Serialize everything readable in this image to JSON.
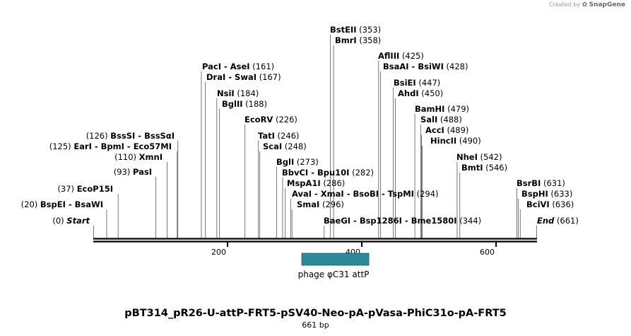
{
  "credit": {
    "prefix": "Created by",
    "brand": "SnapGene"
  },
  "map": {
    "title": "pBT314_pR26-U-attP-FRT5-pSV40-Neo-pA-pVasa-PhiC31o-pA-FRT5",
    "size_label": "661 bp",
    "length": 661,
    "ticks": [
      {
        "value": 200,
        "label": "200"
      },
      {
        "value": 400,
        "label": "400"
      },
      {
        "value": 600,
        "label": "600"
      }
    ],
    "feature": {
      "name": "phage φC31 attP",
      "start": 310,
      "end": 410,
      "color": "#2e8a9b"
    },
    "labels": [
      {
        "id": "bsteii",
        "name": "BstEII",
        "pos": "(353)",
        "cut": 353,
        "side": "right"
      },
      {
        "id": "bmri",
        "name": "BmrI",
        "pos": "(358)",
        "cut": 358,
        "side": "right"
      },
      {
        "id": "afliii",
        "name": "AflIII",
        "pos": "(425)",
        "cut": 425,
        "side": "right"
      },
      {
        "id": "bsaai",
        "name": "BsaAI  -  BsiWI",
        "pos": "(428)",
        "cut": 428,
        "side": "right"
      },
      {
        "id": "pacI",
        "name": "PacI  -  AseI",
        "pos": "(161)",
        "cut": 161,
        "side": "right"
      },
      {
        "id": "drai",
        "name": "DraI  -  SwaI",
        "pos": "(167)",
        "cut": 167,
        "side": "right"
      },
      {
        "id": "bsiei",
        "name": "BsiEI",
        "pos": "(447)",
        "cut": 447,
        "side": "right"
      },
      {
        "id": "ahdi",
        "name": "AhdI",
        "pos": "(450)",
        "cut": 450,
        "side": "right"
      },
      {
        "id": "nsii",
        "name": "NsiI",
        "pos": "(184)",
        "cut": 184,
        "side": "right"
      },
      {
        "id": "bglii",
        "name": "BglII",
        "pos": "(188)",
        "cut": 188,
        "side": "right"
      },
      {
        "id": "bamhi",
        "name": "BamHI",
        "pos": "(479)",
        "cut": 479,
        "side": "right"
      },
      {
        "id": "ecorv",
        "name": "EcoRV",
        "pos": "(226)",
        "cut": 226,
        "side": "right"
      },
      {
        "id": "sali",
        "name": "SalI",
        "pos": "(488)",
        "cut": 488,
        "side": "right"
      },
      {
        "id": "acci",
        "name": "AccI",
        "pos": "(489)",
        "cut": 489,
        "side": "right"
      },
      {
        "id": "bsssi",
        "name": "BssSI  -  BssSαI",
        "pos": "(126)",
        "cut": 126,
        "side": "left"
      },
      {
        "id": "tati",
        "name": "TatI",
        "pos": "(246)",
        "cut": 246,
        "side": "right"
      },
      {
        "id": "hincii",
        "name": "HincII",
        "pos": "(490)",
        "cut": 490,
        "side": "right"
      },
      {
        "id": "eari",
        "name": "EarI  -  BpmI  -  Eco57MI",
        "pos": "(125)",
        "cut": 125,
        "side": "left"
      },
      {
        "id": "scai",
        "name": "ScaI",
        "pos": "(248)",
        "cut": 248,
        "side": "right"
      },
      {
        "id": "xmni",
        "name": "XmnI",
        "pos": "(110)",
        "cut": 110,
        "side": "left"
      },
      {
        "id": "nhei",
        "name": "NheI",
        "pos": "(542)",
        "cut": 542,
        "side": "right"
      },
      {
        "id": "bgli",
        "name": "BglI",
        "pos": "(273)",
        "cut": 273,
        "side": "right"
      },
      {
        "id": "bmti",
        "name": "BmtI",
        "pos": "(546)",
        "cut": 546,
        "side": "right"
      },
      {
        "id": "pasi",
        "name": "PasI",
        "pos": "(93)",
        "cut": 93,
        "side": "left"
      },
      {
        "id": "bbvci",
        "name": "BbvCI  -  Bpu10I",
        "pos": "(282)",
        "cut": 282,
        "side": "right"
      },
      {
        "id": "mspa1i",
        "name": "MspA1I",
        "pos": "(286)",
        "cut": 286,
        "side": "right"
      },
      {
        "id": "bsrbi",
        "name": "BsrBI",
        "pos": "(631)",
        "cut": 631,
        "side": "right"
      },
      {
        "id": "ecop15i",
        "name": "EcoP15I",
        "pos": "(37)",
        "cut": 37,
        "side": "left"
      },
      {
        "id": "avai",
        "name": "AvaI  -  XmaI  -  BsoBI  -  TspMI",
        "pos": "(294)",
        "cut": 294,
        "side": "right"
      },
      {
        "id": "bsphi",
        "name": "BspHI",
        "pos": "(633)",
        "cut": 633,
        "side": "right"
      },
      {
        "id": "bspei",
        "name": "BspEI  -  BsaWI",
        "pos": "(20)",
        "cut": 20,
        "side": "left"
      },
      {
        "id": "smai",
        "name": "SmaI",
        "pos": "(296)",
        "cut": 296,
        "side": "right"
      },
      {
        "id": "bcivi",
        "name": "BciVI",
        "pos": "(636)",
        "cut": 636,
        "side": "right"
      },
      {
        "id": "start",
        "name": "Start",
        "pos": "(0)",
        "cut": 0,
        "side": "left",
        "italic": true
      },
      {
        "id": "baegi",
        "name": "BaeGI  -  Bsp1286I  -  Bme1580I",
        "pos": "(344)",
        "cut": 344,
        "side": "right"
      },
      {
        "id": "end",
        "name": "End",
        "pos": "(661)",
        "cut": 661,
        "side": "right",
        "italic": true
      }
    ]
  }
}
